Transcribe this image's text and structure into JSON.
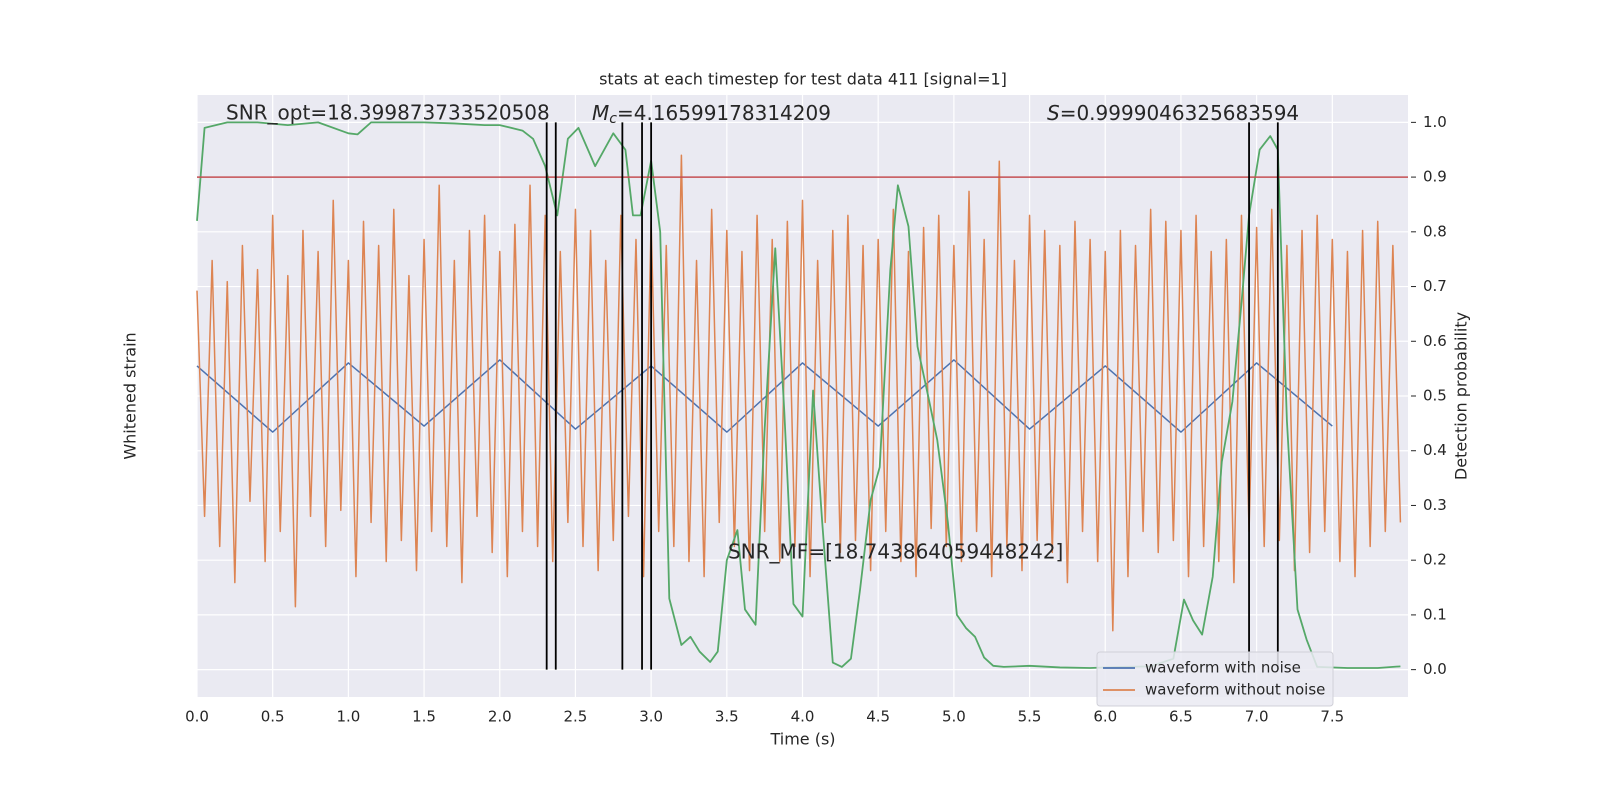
{
  "chart_data": {
    "type": "line",
    "title": "stats at each timestep for test data 411 [signal=1]",
    "xlabel": "Time (s)",
    "ylabel": "Whitened strain",
    "y2label": "Detection probability",
    "xlim": [
      0,
      8
    ],
    "xticks": [
      {
        "value": 0,
        "label": "0.0"
      },
      0.5,
      {
        "value": 1,
        "label": "1.0"
      },
      1.5,
      {
        "value": 2,
        "label": "2.0"
      },
      2.5,
      {
        "value": 3,
        "label": "3.0"
      },
      3.5,
      {
        "value": 4,
        "label": "4.0"
      },
      4.5,
      {
        "value": 5,
        "label": "5.0"
      },
      5.5,
      {
        "value": 6,
        "label": "6.0"
      },
      6.5,
      {
        "value": 7,
        "label": "7.0"
      },
      7.5
    ],
    "ylim": [
      -1,
      1
    ],
    "y2lim": [
      -0.05,
      1.05
    ],
    "y2ticks": [
      {
        "value": 0,
        "label": "0.0"
      },
      0.1,
      0.2,
      0.3,
      0.4,
      0.5,
      0.6,
      0.7,
      0.8,
      0.9,
      {
        "value": 1,
        "label": "1.0"
      }
    ],
    "grid": true,
    "legend": "lower right",
    "x": [
      0,
      0.05,
      0.1,
      0.15,
      0.2,
      0.25,
      0.3,
      0.35,
      0.4,
      0.45,
      0.5,
      0.55,
      0.6,
      0.65,
      0.7,
      0.75,
      0.8,
      0.85,
      0.9,
      0.95,
      1,
      1.05,
      1.1,
      1.15,
      1.2,
      1.25,
      1.3,
      1.35,
      1.4,
      1.45,
      1.5,
      1.55,
      1.6,
      1.65,
      1.7,
      1.75,
      1.8,
      1.85,
      1.9,
      1.95,
      2,
      2.05,
      2.1,
      2.15,
      2.2,
      2.25,
      2.3,
      2.35,
      2.4,
      2.45,
      2.5,
      2.55,
      2.6,
      2.65,
      2.7,
      2.75,
      2.8,
      2.85,
      2.9,
      2.95,
      3,
      3.05,
      3.1,
      3.15,
      3.2,
      3.25,
      3.3,
      3.35,
      3.4,
      3.45,
      3.5,
      3.55,
      3.6,
      3.65,
      3.7,
      3.75,
      3.8,
      3.85,
      3.9,
      3.95,
      4,
      4.05,
      4.1,
      4.15,
      4.2,
      4.25,
      4.3,
      4.35,
      4.4,
      4.45,
      4.5,
      4.55,
      4.6,
      4.65,
      4.7,
      4.75,
      4.8,
      4.85,
      4.9,
      4.95,
      5,
      5.05,
      5.1,
      5.15,
      5.2,
      5.25,
      5.3,
      5.35,
      5.4,
      5.45,
      5.5,
      5.55,
      5.6,
      5.65,
      5.7,
      5.75,
      5.8,
      5.85,
      5.9,
      5.95,
      6,
      6.05,
      6.1,
      6.15,
      6.2,
      6.25,
      6.3,
      6.35,
      6.4,
      6.45,
      6.5,
      6.55,
      6.6,
      6.65,
      6.7,
      6.75,
      6.8,
      6.85,
      6.9,
      6.95,
      7,
      7.05,
      7.1,
      7.15,
      7.2,
      7.25,
      7.3,
      7.35,
      7.4,
      7.45,
      7.5,
      7.55,
      7.6,
      7.65,
      7.7,
      7.75,
      7.8,
      7.85,
      7.9,
      7.95
    ],
    "series": [
      {
        "name": "waveform with noise",
        "color": "#4c72b0",
        "x": [
          0,
          0.5,
          1,
          1.5,
          2,
          2.5,
          3,
          3.5,
          4,
          4.5,
          5,
          5.5,
          6,
          6.5,
          7,
          7.5
        ],
        "values": [
          0.1,
          -0.12,
          0.11,
          -0.1,
          0.12,
          -0.11,
          0.1,
          -0.12,
          0.11,
          -0.1,
          0.12,
          -0.11,
          0.1,
          -0.12,
          0.11,
          -0.1
        ]
      },
      {
        "name": "waveform without noise",
        "color": "#dd8452",
        "values": [
          0.35,
          -0.4,
          0.45,
          -0.5,
          0.38,
          -0.62,
          0.5,
          -0.35,
          0.42,
          -0.55,
          0.6,
          -0.45,
          0.4,
          -0.7,
          0.55,
          -0.4,
          0.48,
          -0.5,
          0.65,
          -0.38,
          0.45,
          -0.6,
          0.58,
          -0.42,
          0.5,
          -0.55,
          0.62,
          -0.48,
          0.4,
          -0.58,
          0.52,
          -0.45,
          0.7,
          -0.5,
          0.45,
          -0.62,
          0.55,
          -0.4,
          0.6,
          -0.52,
          0.48,
          -0.6,
          0.57,
          -0.45,
          0.7,
          -0.5,
          0.6,
          -0.55,
          0.48,
          -0.42,
          0.62,
          -0.5,
          0.55,
          -0.58,
          0.45,
          -0.48,
          0.6,
          -0.4,
          0.52,
          -0.6,
          0.58,
          -0.45,
          0.5,
          -0.5,
          0.8,
          -0.55,
          0.45,
          -0.6,
          0.62,
          -0.42,
          0.55,
          -0.5,
          0.48,
          -0.58,
          0.6,
          -0.45,
          0.52,
          -0.55,
          0.58,
          -0.5,
          0.65,
          -0.6,
          0.45,
          -0.42,
          0.55,
          -0.52,
          0.6,
          -0.48,
          0.5,
          -0.58,
          0.52,
          -0.45,
          0.62,
          -0.55,
          0.48,
          -0.6,
          0.56,
          -0.44,
          0.6,
          -0.5,
          0.5,
          -0.55,
          0.68,
          -0.45,
          0.52,
          -0.6,
          0.78,
          -0.5,
          0.45,
          -0.58,
          0.6,
          -0.48,
          0.55,
          -0.52,
          0.5,
          -0.62,
          0.58,
          -0.45,
          0.52,
          -0.55,
          0.48,
          -0.78,
          0.55,
          -0.6,
          0.5,
          -0.45,
          0.62,
          -0.52,
          0.58,
          -0.48,
          0.55,
          -0.6,
          0.6,
          -0.5,
          0.48,
          -0.55,
          0.52,
          -0.62,
          0.6,
          -0.45,
          0.56,
          -0.5,
          0.62,
          -0.48,
          0.5,
          -0.58,
          0.55,
          -0.52,
          0.6,
          -0.45,
          0.52,
          -0.55,
          0.48,
          -0.6,
          0.55,
          -0.5,
          0.58,
          -0.45,
          0.5,
          -0.42
        ]
      },
      {
        "color": "#55a868",
        "axis": "y2",
        "x": [
          0,
          0.05,
          0.2,
          0.4,
          0.6,
          0.8,
          1.0,
          1.06,
          1.15,
          1.3,
          1.5,
          1.7,
          1.9,
          2.0,
          2.15,
          2.22,
          2.3,
          2.38,
          2.45,
          2.52,
          2.63,
          2.75,
          2.83,
          2.88,
          2.93,
          3.0,
          3.06,
          3.12,
          3.2,
          3.26,
          3.32,
          3.39,
          3.44,
          3.5,
          3.57,
          3.62,
          3.69,
          3.75,
          3.82,
          3.88,
          3.94,
          4.0,
          4.07,
          4.13,
          4.2,
          4.26,
          4.32,
          4.38,
          4.45,
          4.51,
          4.58,
          4.63,
          4.7,
          4.76,
          4.83,
          4.89,
          4.96,
          5.02,
          5.08,
          5.14,
          5.2,
          5.26,
          5.33,
          5.5,
          5.7,
          5.9,
          6.1,
          6.3,
          6.45,
          6.52,
          6.58,
          6.64,
          6.71,
          6.77,
          6.84,
          6.9,
          6.95,
          7.02,
          7.09,
          7.14,
          7.2,
          7.27,
          7.33,
          7.4,
          7.6,
          7.8,
          7.95
        ],
        "values": [
          0.82,
          0.99,
          1.0,
          1.0,
          0.995,
          1.0,
          0.98,
          0.978,
          1.0,
          1.0,
          1.0,
          0.998,
          0.995,
          0.995,
          0.985,
          0.97,
          0.92,
          0.83,
          0.97,
          0.99,
          0.92,
          0.98,
          0.95,
          0.83,
          0.83,
          0.93,
          0.8,
          0.13,
          0.045,
          0.06,
          0.033,
          0.014,
          0.033,
          0.2,
          0.255,
          0.11,
          0.082,
          0.44,
          0.77,
          0.47,
          0.12,
          0.097,
          0.51,
          0.27,
          0.013,
          0.005,
          0.02,
          0.146,
          0.31,
          0.37,
          0.73,
          0.885,
          0.81,
          0.59,
          0.5,
          0.42,
          0.27,
          0.1,
          0.076,
          0.06,
          0.022,
          0.007,
          0.005,
          0.007,
          0.004,
          0.003,
          0.005,
          0.006,
          0.02,
          0.128,
          0.09,
          0.064,
          0.17,
          0.38,
          0.49,
          0.67,
          0.83,
          0.95,
          0.975,
          0.95,
          0.455,
          0.11,
          0.055,
          0.005,
          0.003,
          0.003,
          0.006
        ]
      }
    ],
    "hlines": [
      {
        "value": 0.9,
        "axis": "y2",
        "color": "#c44e52"
      }
    ],
    "vlines": {
      "x": [
        2.31,
        2.37,
        2.81,
        2.94,
        3.0,
        6.95,
        7.14
      ],
      "y2": [
        0,
        1
      ],
      "color": "#000000"
    },
    "annotations": [
      {
        "text": "SNR_opt=18.399873733520508"
      },
      {
        "symbol": "M",
        "subscript": "c",
        "text": "=4.16599178314209"
      },
      {
        "symbol": "S",
        "text": "=0.9999046325683594"
      },
      {
        "text": "SNR_MF=[18.743864059448242]"
      }
    ]
  }
}
